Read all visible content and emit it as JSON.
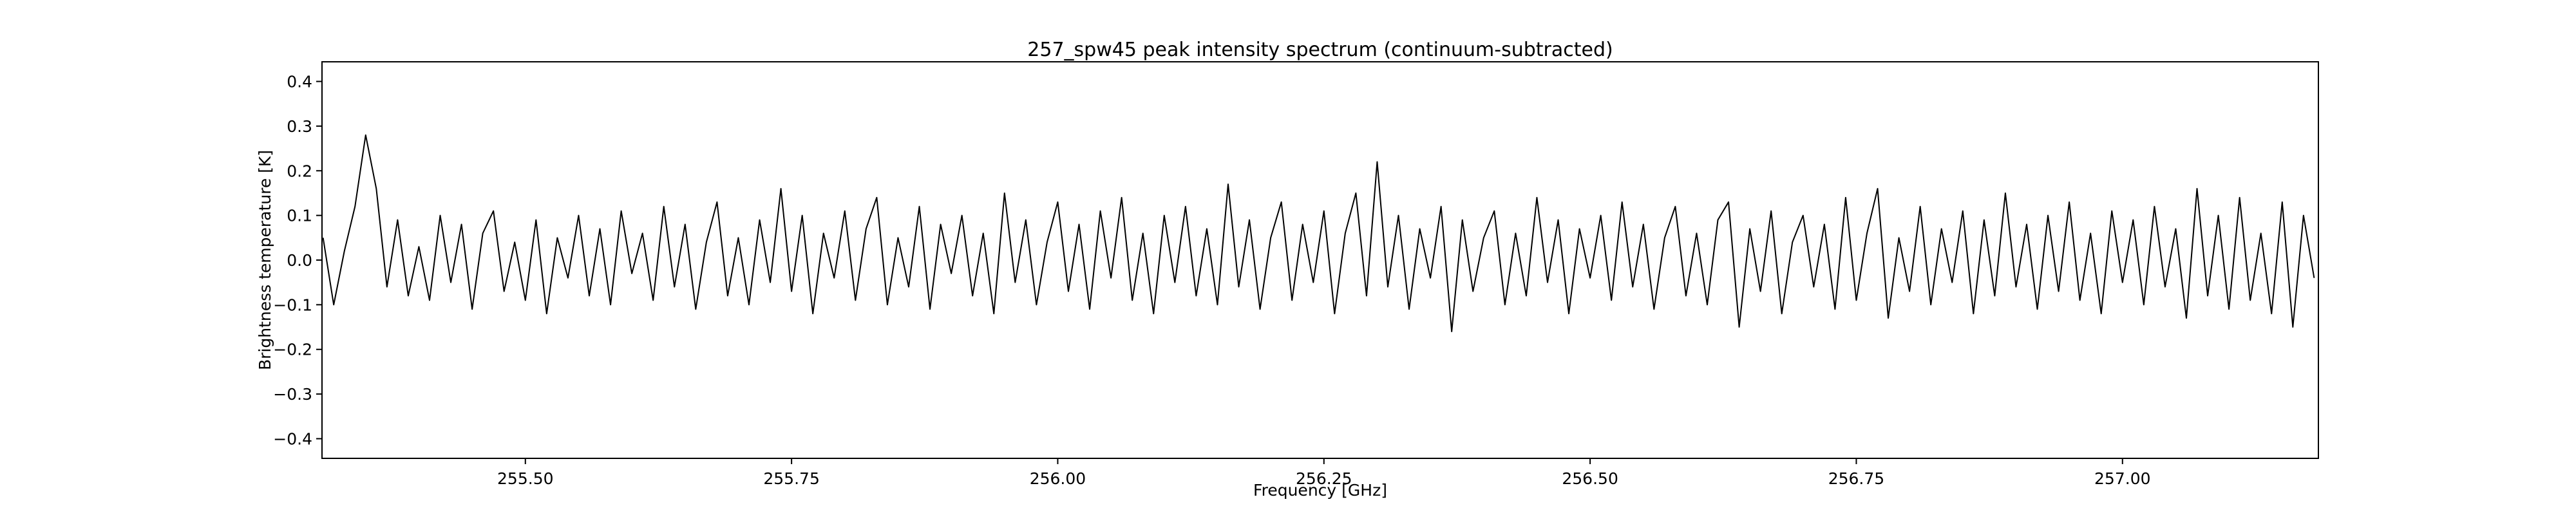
{
  "chart_data": {
    "type": "line",
    "title": "257_spw45 peak intensity spectrum (continuum-subtracted)",
    "x_label": "Frequency [GHz]",
    "y_label": "Brightness temperature [K]",
    "x": [
      255.31,
      255.32,
      255.33,
      255.34,
      255.35,
      255.36,
      255.37,
      255.38,
      255.39,
      255.4,
      255.41,
      255.42,
      255.43,
      255.44,
      255.45,
      255.46,
      255.47,
      255.48,
      255.49,
      255.5,
      255.51,
      255.52,
      255.53,
      255.54,
      255.55,
      255.56,
      255.57,
      255.58,
      255.59,
      255.6,
      255.61,
      255.62,
      255.63,
      255.64,
      255.65,
      255.66,
      255.67,
      255.68,
      255.69,
      255.7,
      255.71,
      255.72,
      255.73,
      255.74,
      255.75,
      255.76,
      255.77,
      255.78,
      255.79,
      255.8,
      255.81,
      255.82,
      255.83,
      255.84,
      255.85,
      255.86,
      255.87,
      255.88,
      255.89,
      255.9,
      255.91,
      255.92,
      255.93,
      255.94,
      255.95,
      255.96,
      255.97,
      255.98,
      255.99,
      256.0,
      256.01,
      256.02,
      256.03,
      256.04,
      256.05,
      256.06,
      256.07,
      256.08,
      256.09,
      256.1,
      256.11,
      256.12,
      256.13,
      256.14,
      256.15,
      256.16,
      256.17,
      256.18,
      256.19,
      256.2,
      256.21,
      256.22,
      256.23,
      256.24,
      256.25,
      256.26,
      256.27,
      256.28,
      256.29,
      256.3,
      256.31,
      256.32,
      256.33,
      256.34,
      256.35,
      256.36,
      256.37,
      256.38,
      256.39,
      256.4,
      256.41,
      256.42,
      256.43,
      256.44,
      256.45,
      256.46,
      256.47,
      256.48,
      256.49,
      256.5,
      256.51,
      256.52,
      256.53,
      256.54,
      256.55,
      256.56,
      256.57,
      256.58,
      256.59,
      256.6,
      256.61,
      256.62,
      256.63,
      256.64,
      256.65,
      256.66,
      256.67,
      256.68,
      256.69,
      256.7,
      256.71,
      256.72,
      256.73,
      256.74,
      256.75,
      256.76,
      256.77,
      256.78,
      256.79,
      256.8,
      256.81,
      256.82,
      256.83,
      256.84,
      256.85,
      256.86,
      256.87,
      256.88,
      256.89,
      256.9,
      256.91,
      256.92,
      256.93,
      256.94,
      256.95,
      256.96,
      256.97,
      256.98,
      256.99,
      257.0,
      257.01,
      257.02,
      257.03,
      257.04,
      257.05,
      257.06,
      257.07,
      257.08,
      257.09,
      257.1,
      257.11,
      257.12,
      257.13,
      257.14,
      257.15,
      257.16,
      257.17,
      257.18
    ],
    "values": [
      0.05,
      -0.1,
      0.02,
      0.12,
      0.28,
      0.16,
      -0.06,
      0.09,
      -0.08,
      0.03,
      -0.09,
      0.1,
      -0.05,
      0.08,
      -0.11,
      0.06,
      0.11,
      -0.07,
      0.04,
      -0.09,
      0.09,
      -0.12,
      0.05,
      -0.04,
      0.1,
      -0.08,
      0.07,
      -0.1,
      0.11,
      -0.03,
      0.06,
      -0.09,
      0.12,
      -0.06,
      0.08,
      -0.11,
      0.04,
      0.13,
      -0.08,
      0.05,
      -0.1,
      0.09,
      -0.05,
      0.16,
      -0.07,
      0.1,
      -0.12,
      0.06,
      -0.04,
      0.11,
      -0.09,
      0.07,
      0.14,
      -0.1,
      0.05,
      -0.06,
      0.12,
      -0.11,
      0.08,
      -0.03,
      0.1,
      -0.08,
      0.06,
      -0.12,
      0.15,
      -0.05,
      0.09,
      -0.1,
      0.04,
      0.13,
      -0.07,
      0.08,
      -0.11,
      0.11,
      -0.04,
      0.14,
      -0.09,
      0.06,
      -0.12,
      0.1,
      -0.05,
      0.12,
      -0.08,
      0.07,
      -0.1,
      0.17,
      -0.06,
      0.09,
      -0.11,
      0.05,
      0.13,
      -0.09,
      0.08,
      -0.05,
      0.11,
      -0.12,
      0.06,
      0.15,
      -0.08,
      0.22,
      -0.06,
      0.1,
      -0.11,
      0.07,
      -0.04,
      0.12,
      -0.16,
      0.09,
      -0.07,
      0.05,
      0.11,
      -0.1,
      0.06,
      -0.08,
      0.14,
      -0.05,
      0.09,
      -0.12,
      0.07,
      -0.04,
      0.1,
      -0.09,
      0.13,
      -0.06,
      0.08,
      -0.11,
      0.05,
      0.12,
      -0.08,
      0.06,
      -0.1,
      0.09,
      0.13,
      -0.15,
      0.07,
      -0.07,
      0.11,
      -0.12,
      0.04,
      0.1,
      -0.06,
      0.08,
      -0.11,
      0.14,
      -0.09,
      0.06,
      0.16,
      -0.13,
      0.05,
      -0.07,
      0.12,
      -0.1,
      0.07,
      -0.05,
      0.11,
      -0.12,
      0.09,
      -0.08,
      0.15,
      -0.06,
      0.08,
      -0.11,
      0.1,
      -0.07,
      0.13,
      -0.09,
      0.06,
      -0.12,
      0.11,
      -0.05,
      0.09,
      -0.1,
      0.12,
      -0.06,
      0.07,
      -0.13,
      0.16,
      -0.08,
      0.1,
      -0.11,
      0.14,
      -0.09,
      0.06,
      -0.12,
      0.13,
      -0.15,
      0.1,
      -0.04
    ],
    "color": "#000000",
    "xlim": [
      255.309,
      257.184
    ],
    "ylim": [
      -0.444,
      0.444
    ],
    "xticks": [
      {
        "value": 255.5,
        "label": "255.50"
      },
      {
        "value": 255.75,
        "label": "255.75"
      },
      {
        "value": 256,
        "label": "256.00"
      },
      {
        "value": 256.25,
        "label": "256.25"
      },
      {
        "value": 256.5,
        "label": "256.50"
      },
      {
        "value": 256.75,
        "label": "256.75"
      },
      {
        "value": 257,
        "label": "257.00"
      }
    ],
    "yticks": [
      {
        "value": -0.4,
        "label": "−0.4"
      },
      {
        "value": -0.3,
        "label": "−0.3"
      },
      {
        "value": -0.2,
        "label": "−0.2"
      },
      {
        "value": -0.1,
        "label": "−0.1"
      },
      {
        "value": 0,
        "label": "0.0"
      },
      0.1,
      0.2,
      0.3,
      0.4
    ],
    "grid": false
  }
}
